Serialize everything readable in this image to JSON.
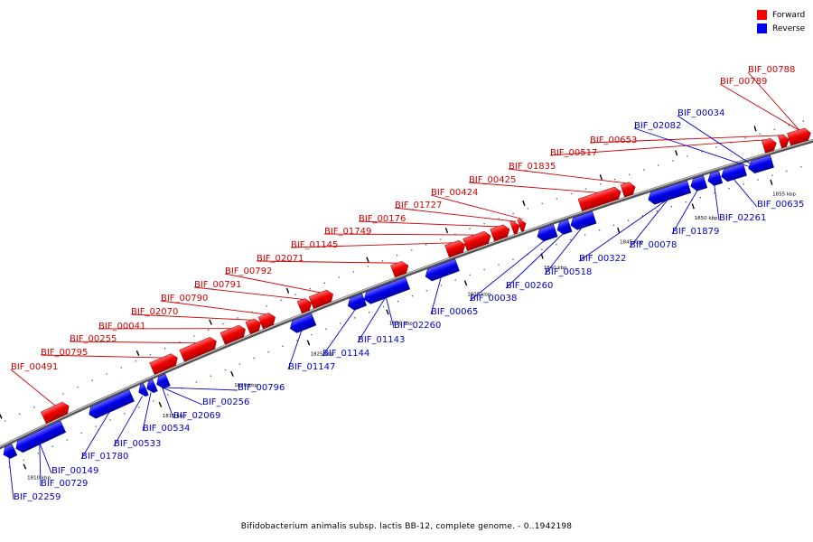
{
  "legend": {
    "items": [
      {
        "label": "Forward",
        "color": "#ff0000"
      },
      {
        "label": "Reverse",
        "color": "#0000ff"
      }
    ]
  },
  "caption": "Bifidobacterium animalis subsp. lactis BB-12, complete genome. - 0..1942198",
  "scale_labels": [
    "1810 kbp",
    "1815 kbp",
    "1820 kbp",
    "1825 kbp",
    "1830 kbp",
    "1835 kbp",
    "1840 kbp",
    "1845 kbp",
    "1850 kbp",
    "1855 kbp"
  ],
  "forward_genes": [
    "BIF_00491",
    "BIF_00795",
    "BIF_00255",
    "BIF_00041",
    "BIF_02070",
    "BIF_00790",
    "BIF_00791",
    "BIF_00792",
    "BIF_02071",
    "BIF_01145",
    "BIF_01749",
    "BIF_00176",
    "BIF_01727",
    "BIF_00424",
    "BIF_00425",
    "BIF_01835",
    "BIF_00517",
    "BIF_00653",
    "BIF_00789",
    "BIF_00788"
  ],
  "reverse_genes": [
    "BIF_02259",
    "BIF_00729",
    "BIF_00149",
    "BIF_01780",
    "BIF_00533",
    "BIF_00534",
    "BIF_02069",
    "BIF_00256",
    "BIF_00796",
    "BIF_01147",
    "BIF_01144",
    "BIF_01143",
    "BIF_02260",
    "BIF_00065",
    "BIF_00038",
    "BIF_00260",
    "BIF_00518",
    "BIF_00322",
    "BIF_00078",
    "BIF_01879",
    "BIF_02261",
    "BIF_00635",
    "BIF_02082",
    "BIF_00034"
  ]
}
